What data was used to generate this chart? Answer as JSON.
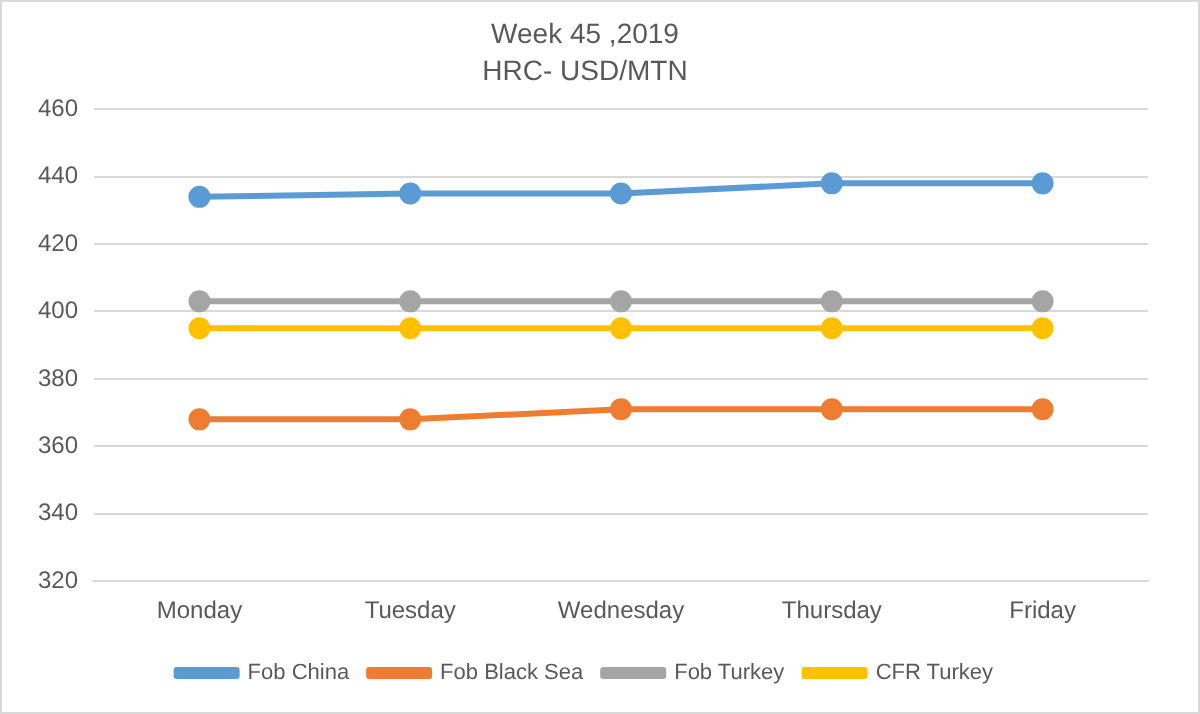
{
  "chart_data": {
    "type": "line",
    "title": "Week 45 ,2019",
    "subtitle": "HRC- USD/MTN",
    "categories": [
      "Monday",
      "Tuesday",
      "Wednesday",
      "Thursday",
      "Friday"
    ],
    "series": [
      {
        "name": "Fob China",
        "color": "#5b9bd5",
        "values": [
          434,
          435,
          435,
          438,
          438
        ]
      },
      {
        "name": "Fob Black Sea",
        "color": "#ed7d31",
        "values": [
          368,
          368,
          371,
          371,
          371
        ]
      },
      {
        "name": "Fob Turkey",
        "color": "#a5a5a5",
        "values": [
          403,
          403,
          403,
          403,
          403
        ]
      },
      {
        "name": "CFR Turkey",
        "color": "#ffc000",
        "values": [
          395,
          395,
          395,
          395,
          395
        ]
      }
    ],
    "ylim": [
      320,
      460
    ],
    "yticks": [
      320,
      340,
      360,
      380,
      400,
      420,
      440,
      460
    ],
    "grid": "y",
    "legend": "bottom",
    "marker": "circle",
    "line_style": "solid"
  }
}
